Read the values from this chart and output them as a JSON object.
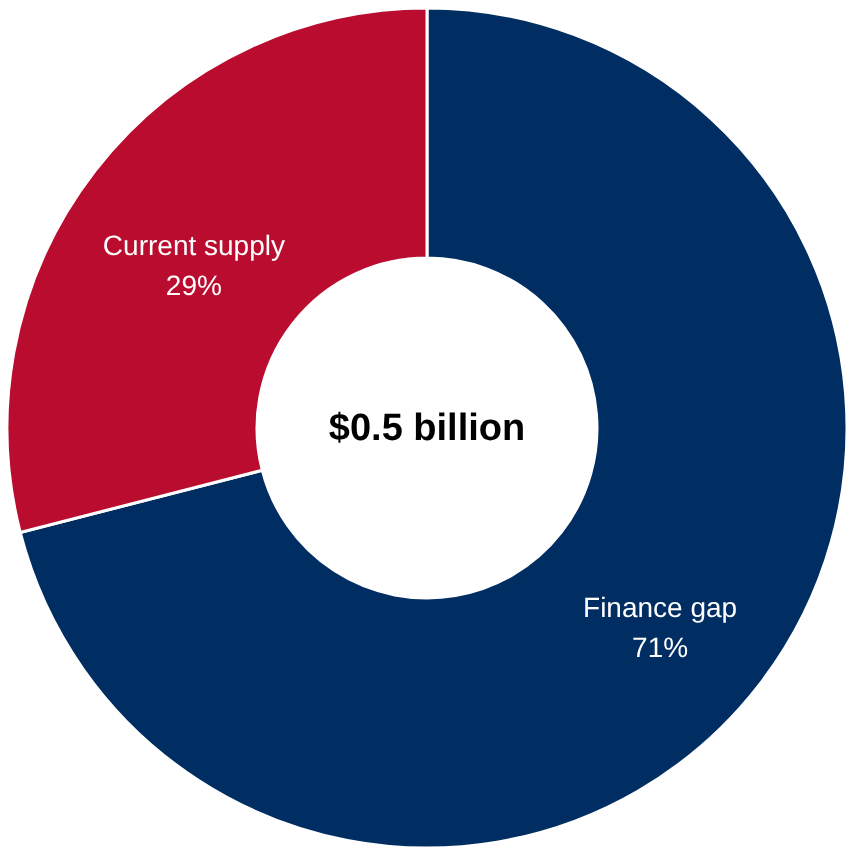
{
  "chart_data": {
    "type": "donut",
    "categories": [
      "Finance gap",
      "Current supply"
    ],
    "values": [
      71,
      29
    ],
    "colors": [
      "#002d62",
      "#ba0c2f"
    ],
    "value_labels": [
      "71%",
      "29%"
    ],
    "annotations": [
      "$0.5 billion"
    ],
    "legend": false
  }
}
